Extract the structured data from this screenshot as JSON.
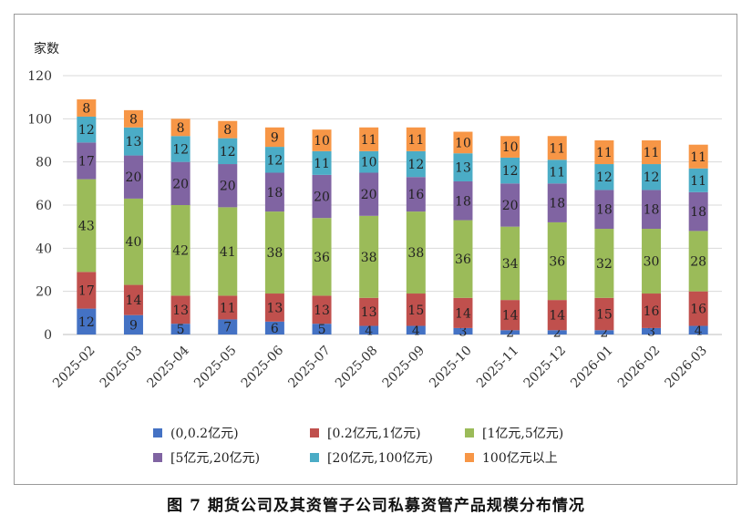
{
  "chart_data": {
    "type": "bar",
    "stacked": true,
    "ylabel": "家数",
    "ylim": [
      0,
      120
    ],
    "yticks": [
      0,
      20,
      40,
      60,
      80,
      100,
      120
    ],
    "grid": true,
    "legend_position": "bottom",
    "categories": [
      "2025-02",
      "2025-03",
      "2025-04",
      "2025-05",
      "2025-06",
      "2025-07",
      "2025-08",
      "2025-09",
      "2025-10",
      "2025-11",
      "2025-12",
      "2026-01",
      "2026-02",
      "2026-03"
    ],
    "series": [
      {
        "name": "(0,0.2亿元)",
        "color": "#4472C4",
        "values": [
          12,
          9,
          5,
          7,
          6,
          5,
          4,
          4,
          3,
          2,
          2,
          2,
          3,
          4
        ]
      },
      {
        "name": "[0.2亿元,1亿元)",
        "color": "#C0504D",
        "values": [
          17,
          14,
          13,
          11,
          13,
          13,
          13,
          15,
          14,
          14,
          14,
          15,
          16,
          16
        ]
      },
      {
        "name": "[1亿元,5亿元)",
        "color": "#9BBB59",
        "values": [
          43,
          40,
          42,
          41,
          38,
          36,
          38,
          38,
          36,
          34,
          36,
          32,
          30,
          28
        ]
      },
      {
        "name": "[5亿元,20亿元)",
        "color": "#8064A2",
        "values": [
          17,
          20,
          20,
          20,
          18,
          20,
          20,
          16,
          18,
          20,
          18,
          18,
          18,
          18
        ]
      },
      {
        "name": "[20亿元,100亿元)",
        "color": "#4BACC6",
        "values": [
          12,
          13,
          12,
          12,
          12,
          11,
          10,
          12,
          13,
          12,
          11,
          12,
          12,
          11
        ]
      },
      {
        "name": "100亿元以上",
        "color": "#F79646",
        "values": [
          8,
          8,
          8,
          8,
          9,
          10,
          11,
          11,
          10,
          10,
          11,
          11,
          11,
          11
        ]
      }
    ]
  },
  "caption": "图 7   期货公司及其资管子公司私募资管产品规模分布情况"
}
